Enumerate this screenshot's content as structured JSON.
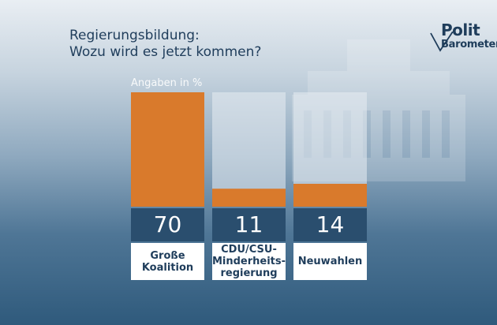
{
  "title_line1": "Regierungsbildung:",
  "title_line2": "Wozu wird es jetzt kommen?",
  "logo": {
    "line1": "Polit",
    "line2": "Barometer"
  },
  "chart_data": {
    "type": "bar",
    "unit_label": "Angaben in %",
    "categories": [
      "Große Koalition",
      "CDU/CSU-Minderheits-regierung",
      "Neuwahlen"
    ],
    "category_lines": [
      [
        "Große",
        "Koalition"
      ],
      [
        "CDU/CSU-",
        "Minderheits-",
        "regierung"
      ],
      [
        "Neuwahlen"
      ]
    ],
    "values": [
      70,
      11,
      14
    ],
    "value_labels": [
      "70",
      "11",
      "14"
    ],
    "ylim": [
      0,
      70
    ],
    "bar_color": "#d97a2c",
    "track_color": "#e8edf2",
    "grid": false
  }
}
